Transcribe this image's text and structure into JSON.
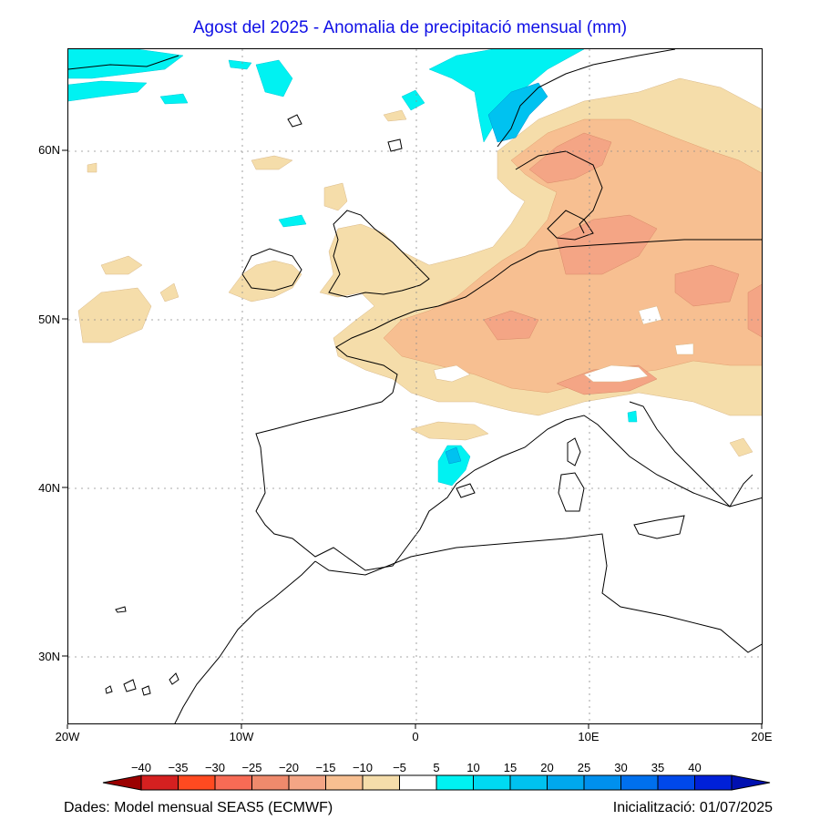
{
  "title": "Agost del 2025 - Anomalia de precipitació mensual (mm)",
  "map": {
    "lat_labels": [
      "60N",
      "50N",
      "40N",
      "30N"
    ],
    "lon_labels": [
      "20W",
      "10W",
      "0",
      "10E",
      "20E"
    ],
    "extent": {
      "lon_min": -20,
      "lon_max": 20,
      "lat_min": 26,
      "lat_max": 65.5
    },
    "gridlines": true
  },
  "colorbar": {
    "labels": [
      "−40",
      "−35",
      "−30",
      "−25",
      "−20",
      "−15",
      "−10",
      "−5",
      "5",
      "10",
      "15",
      "20",
      "25",
      "30",
      "35",
      "40"
    ],
    "colors": [
      "#9b0000",
      "#d52020",
      "#ff4a20",
      "#f76b55",
      "#ef8a6c",
      "#f4a585",
      "#f7bf91",
      "#f5ddaa",
      "#ffffff",
      "#00f2f2",
      "#00daf2",
      "#00c2f0",
      "#00a8ee",
      "#0090ee",
      "#0070ee",
      "#0048ea",
      "#0020d8",
      "#0010b0"
    ]
  },
  "footer": {
    "source": "Dades: Model mensual SEAS5 (ECMWF)",
    "init": "Inicialització: 01/07/2025"
  }
}
